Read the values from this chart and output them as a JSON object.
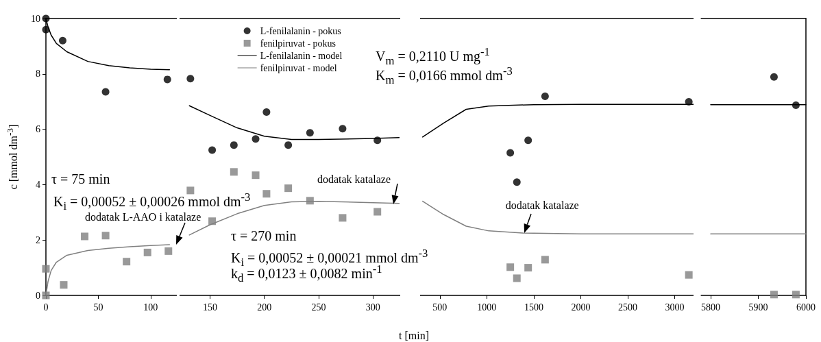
{
  "chart_data": [
    {
      "type": "scatter",
      "ylabel": "c [mmol dm$^{-3}$]",
      "xlim": [
        0,
        125
      ],
      "xticks": [
        0,
        50,
        100
      ],
      "ylim": [
        0,
        10
      ],
      "yticks": [
        0,
        2,
        4,
        6,
        8,
        10
      ],
      "annotations": [
        "τ = 75 min",
        "K$_{i}$ = 0,00052 ± 0,00026 mmol dm$^{-3}$",
        "dodatak L-AAO i katalaze"
      ],
      "series": [
        {
          "type": "scatter",
          "marker": "circle",
          "color": "#000000",
          "x": [
            0,
            0,
            16,
            57,
            116
          ],
          "values": [
            10,
            9.6,
            9.2,
            7.35,
            7.8
          ]
        },
        {
          "type": "scatter",
          "marker": "square",
          "color": "#808080",
          "x": [
            0,
            0,
            17,
            37,
            57,
            77,
            97,
            117
          ],
          "values": [
            0,
            0.96,
            0.38,
            2.13,
            2.16,
            1.22,
            1.55,
            1.6
          ]
        },
        {
          "type": "line",
          "marker": "none",
          "color": "#000000",
          "x": [
            0,
            2,
            5,
            10,
            20,
            40,
            60,
            80,
            100,
            118
          ],
          "values": [
            10,
            9.7,
            9.4,
            9.1,
            8.8,
            8.45,
            8.3,
            8.22,
            8.17,
            8.15
          ]
        },
        {
          "type": "line",
          "marker": "none",
          "color": "#808080",
          "x": [
            0,
            2,
            5,
            10,
            20,
            40,
            60,
            80,
            100,
            118
          ],
          "values": [
            0,
            0.5,
            0.9,
            1.2,
            1.45,
            1.62,
            1.7,
            1.76,
            1.8,
            1.83
          ]
        }
      ]
    },
    {
      "type": "scatter",
      "xlabel": "t [min]",
      "xlim": [
        122,
        325
      ],
      "xticks": [
        150,
        200,
        250,
        300
      ],
      "ylim": [
        0,
        10
      ],
      "tick_labels": "x",
      "legend": "top",
      "annotations": [
        "τ = 270 min",
        "K$_{i}$ = 0,00052 ± 0,00021 mmol dm$^{-3}$",
        "k$_{d}$ = 0,0123 ± 0,0082 min$^{-1}$",
        "V$_{m}$ = 0,2110 U mg$^{-1}$",
        "K$_{m}$ = 0,0166 mmol dm$^{-3}$",
        {
          "text": "dodatak katalaze",
          "x": 319,
          "y": 3.3
        }
      ],
      "series": [
        {
          "name": "L-fenilalanin - pokus",
          "type": "scatter",
          "marker": "circle",
          "color": "#000000",
          "x": [
            132,
            152,
            172,
            192,
            202,
            222,
            242,
            272,
            304
          ],
          "values": [
            7.83,
            5.25,
            5.43,
            5.65,
            6.62,
            5.43,
            5.87,
            6.02,
            5.6
          ]
        },
        {
          "name": "fenilpiruvat - pokus",
          "type": "scatter",
          "marker": "square",
          "color": "#808080",
          "x": [
            132,
            152,
            172,
            192,
            202,
            222,
            242,
            272,
            304
          ],
          "values": [
            3.79,
            2.68,
            4.46,
            4.34,
            3.67,
            3.87,
            3.42,
            2.8,
            3.02
          ]
        },
        {
          "name": "L-fenilalanin - model",
          "type": "line",
          "marker": "none",
          "color": "#000000",
          "x": [
            131,
            150,
            175,
            200,
            225,
            250,
            300,
            324
          ],
          "values": [
            6.85,
            6.5,
            6.05,
            5.75,
            5.63,
            5.63,
            5.67,
            5.7
          ]
        },
        {
          "name": "fenilpiruvat - model",
          "type": "line",
          "marker": "none",
          "color": "#808080",
          "x": [
            131,
            150,
            175,
            200,
            225,
            250,
            300,
            324
          ],
          "values": [
            2.18,
            2.55,
            2.95,
            3.25,
            3.38,
            3.4,
            3.35,
            3.32
          ]
        }
      ]
    },
    {
      "type": "scatter",
      "xlim": [
        290,
        3200
      ],
      "xticks": [
        500,
        1000,
        1500,
        2000,
        2500,
        3000
      ],
      "ylim": [
        0,
        10
      ],
      "tick_labels": "x",
      "annotations": [
        {
          "text": "dodatak katalaze",
          "x": 1400,
          "y": 2.25
        }
      ],
      "series": [
        {
          "type": "scatter",
          "marker": "circle",
          "color": "#000000",
          "x": [
            1250,
            1320,
            1440,
            1620,
            3150
          ],
          "values": [
            5.15,
            4.09,
            5.6,
            7.19,
            6.99
          ]
        },
        {
          "type": "scatter",
          "marker": "square",
          "color": "#808080",
          "x": [
            1250,
            1320,
            1440,
            1620,
            3150
          ],
          "values": [
            1.02,
            0.62,
            1.0,
            1.29,
            0.74
          ]
        },
        {
          "type": "line",
          "marker": "none",
          "color": "#000000",
          "x": [
            317,
            540,
            780,
            1020,
            1500,
            2000,
            3200
          ],
          "values": [
            5.72,
            6.22,
            6.72,
            6.84,
            6.89,
            6.9,
            6.9
          ]
        },
        {
          "type": "line",
          "marker": "none",
          "color": "#808080",
          "x": [
            317,
            540,
            780,
            1020,
            1380,
            2000,
            3200
          ],
          "values": [
            3.4,
            2.92,
            2.5,
            2.33,
            2.25,
            2.22,
            2.22
          ]
        }
      ]
    },
    {
      "type": "scatter",
      "xlim": [
        5780,
        6000
      ],
      "xticks": [
        5800,
        5900,
        6000
      ],
      "ylim": [
        0,
        10
      ],
      "tick_labels": "x",
      "series": [
        {
          "type": "scatter",
          "marker": "circle",
          "color": "#000000",
          "x": [
            5933,
            5979
          ],
          "values": [
            7.89,
            6.87
          ]
        },
        {
          "type": "scatter",
          "marker": "square",
          "color": "#808080",
          "x": [
            5933,
            5979
          ],
          "values": [
            0.03,
            0.03
          ]
        },
        {
          "type": "line",
          "marker": "none",
          "color": "#000000",
          "x": [
            5800,
            6000
          ],
          "values": [
            6.89,
            6.89
          ]
        },
        {
          "type": "line",
          "marker": "none",
          "color": "#808080",
          "x": [
            5800,
            6000
          ],
          "values": [
            2.22,
            2.22
          ]
        }
      ]
    }
  ]
}
